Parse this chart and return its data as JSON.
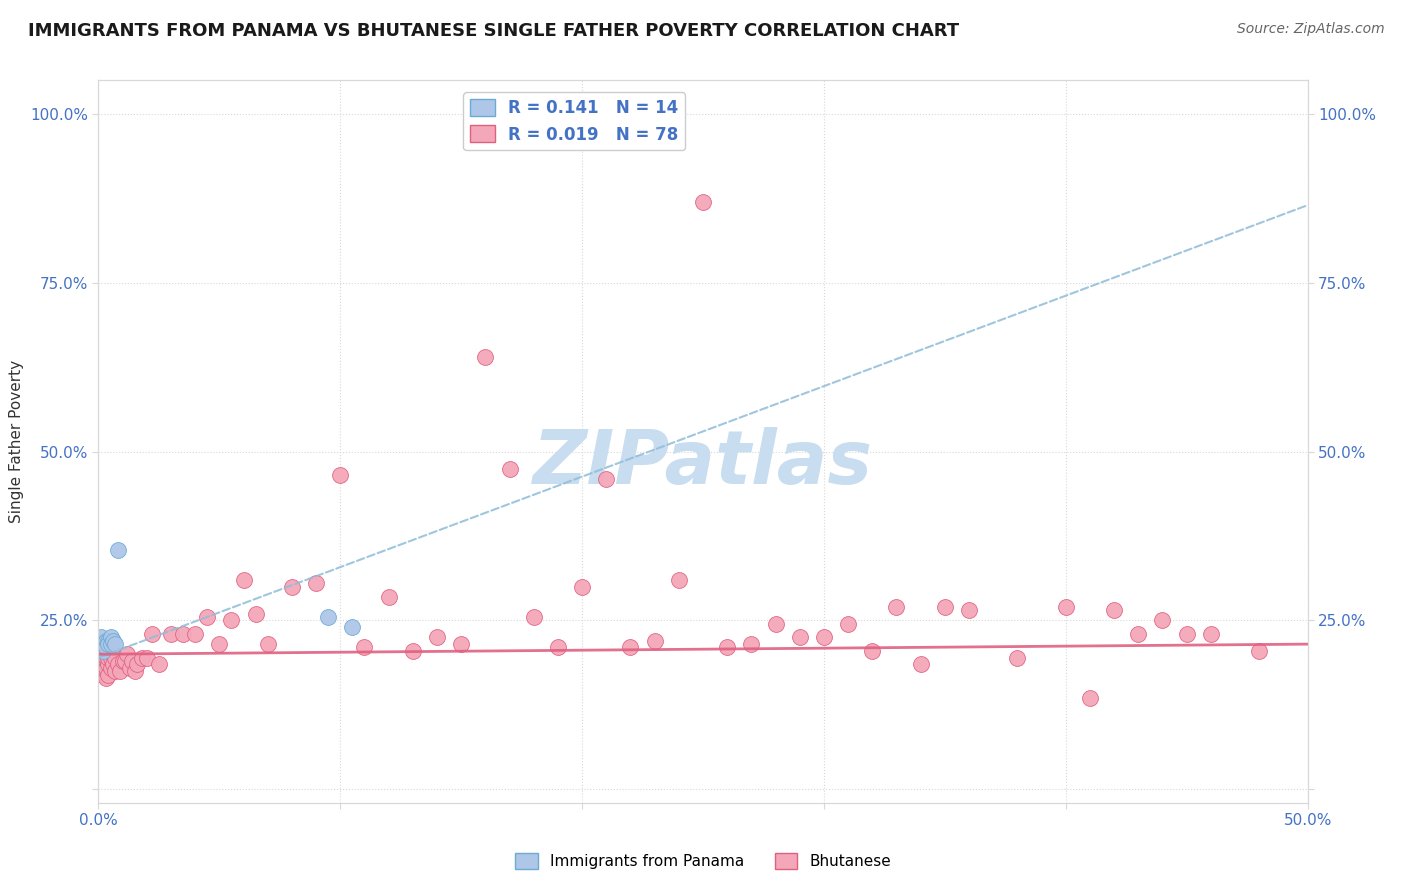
{
  "title": "IMMIGRANTS FROM PANAMA VS BHUTANESE SINGLE FATHER POVERTY CORRELATION CHART",
  "source": "Source: ZipAtlas.com",
  "ylabel": "Single Father Poverty",
  "xlim": [
    0.0,
    0.5
  ],
  "ylim": [
    -0.02,
    1.05
  ],
  "x_ticks": [
    0.0,
    0.1,
    0.2,
    0.3,
    0.4,
    0.5
  ],
  "x_tick_labels": [
    "0.0%",
    "",
    "",
    "",
    "",
    "50.0%"
  ],
  "y_ticks": [
    0.0,
    0.25,
    0.5,
    0.75,
    1.0
  ],
  "y_tick_labels": [
    "",
    "25.0%",
    "50.0%",
    "75.0%",
    "100.0%"
  ],
  "panama_R": 0.141,
  "panama_N": 14,
  "bhutan_R": 0.019,
  "bhutan_N": 78,
  "panama_color": "#aec6e8",
  "bhutan_color": "#f4a7b9",
  "panama_edge_color": "#6aaad4",
  "bhutan_edge_color": "#e06080",
  "panama_line_color": "#90bcd8",
  "bhutan_line_color": "#e06080",
  "panama_points_x": [
    0.001,
    0.002,
    0.002,
    0.003,
    0.003,
    0.004,
    0.004,
    0.005,
    0.005,
    0.006,
    0.007,
    0.008,
    0.095,
    0.105
  ],
  "panama_points_y": [
    0.225,
    0.215,
    0.205,
    0.22,
    0.21,
    0.22,
    0.215,
    0.225,
    0.215,
    0.22,
    0.215,
    0.355,
    0.255,
    0.24
  ],
  "bhutan_points_x": [
    0.001,
    0.001,
    0.001,
    0.002,
    0.002,
    0.002,
    0.003,
    0.003,
    0.003,
    0.004,
    0.004,
    0.004,
    0.005,
    0.005,
    0.006,
    0.006,
    0.007,
    0.007,
    0.008,
    0.009,
    0.01,
    0.011,
    0.012,
    0.013,
    0.014,
    0.015,
    0.016,
    0.018,
    0.02,
    0.022,
    0.025,
    0.03,
    0.035,
    0.04,
    0.045,
    0.05,
    0.055,
    0.06,
    0.065,
    0.07,
    0.08,
    0.09,
    0.1,
    0.11,
    0.12,
    0.13,
    0.14,
    0.15,
    0.16,
    0.17,
    0.18,
    0.19,
    0.2,
    0.21,
    0.22,
    0.23,
    0.24,
    0.25,
    0.26,
    0.27,
    0.28,
    0.29,
    0.3,
    0.31,
    0.32,
    0.33,
    0.34,
    0.35,
    0.36,
    0.38,
    0.4,
    0.41,
    0.42,
    0.43,
    0.44,
    0.45,
    0.46,
    0.48
  ],
  "bhutan_points_y": [
    0.175,
    0.185,
    0.19,
    0.17,
    0.185,
    0.195,
    0.165,
    0.18,
    0.195,
    0.17,
    0.185,
    0.195,
    0.18,
    0.195,
    0.2,
    0.185,
    0.175,
    0.195,
    0.185,
    0.175,
    0.19,
    0.19,
    0.2,
    0.18,
    0.19,
    0.175,
    0.185,
    0.195,
    0.195,
    0.23,
    0.185,
    0.23,
    0.23,
    0.23,
    0.255,
    0.215,
    0.25,
    0.31,
    0.26,
    0.215,
    0.3,
    0.305,
    0.465,
    0.21,
    0.285,
    0.205,
    0.225,
    0.215,
    0.64,
    0.475,
    0.255,
    0.21,
    0.3,
    0.46,
    0.21,
    0.22,
    0.31,
    0.87,
    0.21,
    0.215,
    0.245,
    0.225,
    0.225,
    0.245,
    0.205,
    0.27,
    0.185,
    0.27,
    0.265,
    0.195,
    0.27,
    0.135,
    0.265,
    0.23,
    0.25,
    0.23,
    0.23,
    0.205
  ],
  "panama_line_x0": 0.0,
  "panama_line_y0": 0.195,
  "panama_line_x1": 0.5,
  "panama_line_y1": 0.865,
  "bhutan_line_x0": 0.0,
  "bhutan_line_y0": 0.2,
  "bhutan_line_x1": 0.5,
  "bhutan_line_y1": 0.215,
  "watermark_text": "ZIPatlas",
  "watermark_color": "#c8ddf0",
  "background_color": "#ffffff",
  "grid_color": "#d8d8d8",
  "tick_color": "#4472c4",
  "title_color": "#1a1a1a",
  "source_color": "#666666",
  "ylabel_color": "#333333"
}
